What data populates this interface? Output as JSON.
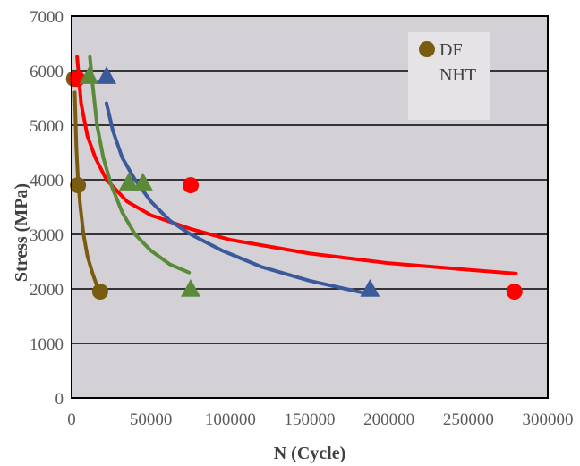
{
  "chart_data": {
    "type": "scatter",
    "xlabel": "N (Cycle)",
    "ylabel": "Stress (MPa)",
    "xlim": [
      0,
      300000
    ],
    "ylim": [
      0,
      7000
    ],
    "x_ticks": [
      "0",
      "50000",
      "100000",
      "150000",
      "200000",
      "250000",
      "300000"
    ],
    "y_ticks": [
      "0",
      "1000",
      "2000",
      "3000",
      "4000",
      "5000",
      "6000",
      "7000"
    ],
    "grid": "horizontal",
    "background": "#d4d1d6",
    "legend": {
      "placement": "top-right",
      "entries": [
        "DF",
        "NHT"
      ]
    },
    "series": [
      {
        "name": "DF",
        "marker": "circle",
        "color": "#7a5c10",
        "points": [
          [
            1500,
            5850
          ],
          [
            4000,
            3900
          ],
          [
            18000,
            1950
          ]
        ],
        "trend": [
          [
            2000,
            5600
          ],
          [
            3000,
            4600
          ],
          [
            4000,
            4000
          ],
          [
            5500,
            3500
          ],
          [
            7500,
            3000
          ],
          [
            10000,
            2600
          ],
          [
            13000,
            2300
          ],
          [
            16000,
            2050
          ]
        ]
      },
      {
        "marker": "circle",
        "color": "#ff0000",
        "points": [
          [
            3500,
            5850
          ],
          [
            75000,
            3900
          ],
          [
            279000,
            1950
          ]
        ],
        "trend": [
          [
            3500,
            6250
          ],
          [
            6000,
            5400
          ],
          [
            10000,
            4800
          ],
          [
            15000,
            4400
          ],
          [
            22000,
            4000
          ],
          [
            35000,
            3600
          ],
          [
            50000,
            3350
          ],
          [
            75000,
            3100
          ],
          [
            100000,
            2900
          ],
          [
            150000,
            2650
          ],
          [
            200000,
            2470
          ],
          [
            250000,
            2350
          ],
          [
            280000,
            2280
          ]
        ]
      },
      {
        "marker": "triangle",
        "color": "#5a8a3a",
        "points": [
          [
            11000,
            5900
          ],
          [
            36000,
            3950
          ],
          [
            45000,
            3950
          ],
          [
            75000,
            2000
          ]
        ],
        "trend": [
          [
            11500,
            6250
          ],
          [
            13000,
            5800
          ],
          [
            16000,
            5000
          ],
          [
            20000,
            4400
          ],
          [
            25000,
            3900
          ],
          [
            32000,
            3400
          ],
          [
            40000,
            3000
          ],
          [
            50000,
            2700
          ],
          [
            62000,
            2450
          ],
          [
            74000,
            2300
          ]
        ]
      },
      {
        "marker": "triangle",
        "color": "#3b5a9c",
        "points": [
          [
            22000,
            5900
          ],
          [
            188000,
            2000
          ]
        ],
        "points_extra_note": "",
        "trend": [
          [
            22000,
            5400
          ],
          [
            26000,
            4900
          ],
          [
            32000,
            4400
          ],
          [
            40000,
            4000
          ],
          [
            50000,
            3600
          ],
          [
            62000,
            3250
          ],
          [
            75000,
            3000
          ],
          [
            95000,
            2700
          ],
          [
            120000,
            2400
          ],
          [
            150000,
            2150
          ],
          [
            188000,
            1900
          ]
        ]
      }
    ]
  }
}
